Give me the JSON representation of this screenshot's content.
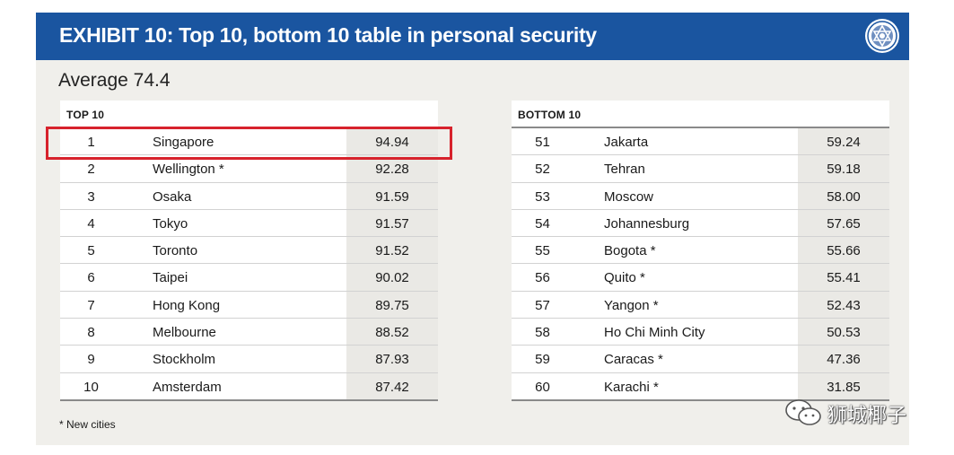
{
  "header": {
    "title": "EXHIBIT 10: Top 10, bottom 10 table in personal security"
  },
  "average": "Average 74.4",
  "top": {
    "heading": "TOP 10",
    "rows": [
      {
        "rank": "1",
        "city": "Singapore",
        "value": "94.94"
      },
      {
        "rank": "2",
        "city": "Wellington *",
        "value": "92.28"
      },
      {
        "rank": "3",
        "city": "Osaka",
        "value": "91.59"
      },
      {
        "rank": "4",
        "city": "Tokyo",
        "value": "91.57"
      },
      {
        "rank": "5",
        "city": "Toronto",
        "value": "91.52"
      },
      {
        "rank": "6",
        "city": "Taipei",
        "value": "90.02"
      },
      {
        "rank": "7",
        "city": "Hong Kong",
        "value": "89.75"
      },
      {
        "rank": "8",
        "city": "Melbourne",
        "value": "88.52"
      },
      {
        "rank": "9",
        "city": "Stockholm",
        "value": "87.93"
      },
      {
        "rank": "10",
        "city": "Amsterdam",
        "value": "87.42"
      }
    ]
  },
  "bottom": {
    "heading": "BOTTOM 10",
    "rows": [
      {
        "rank": "51",
        "city": "Jakarta",
        "value": "59.24"
      },
      {
        "rank": "52",
        "city": "Tehran",
        "value": "59.18"
      },
      {
        "rank": "53",
        "city": "Moscow",
        "value": "58.00"
      },
      {
        "rank": "54",
        "city": "Johannesburg",
        "value": "57.65"
      },
      {
        "rank": "55",
        "city": "Bogota *",
        "value": "55.66"
      },
      {
        "rank": "56",
        "city": "Quito *",
        "value": "55.41"
      },
      {
        "rank": "57",
        "city": "Yangon *",
        "value": "52.43"
      },
      {
        "rank": "58",
        "city": "Ho Chi Minh City",
        "value": "50.53"
      },
      {
        "rank": "59",
        "city": "Caracas *",
        "value": "47.36"
      },
      {
        "rank": "60",
        "city": "Karachi *",
        "value": "31.85"
      }
    ]
  },
  "footnote": "* New cities",
  "watermark": {
    "text": "狮城椰子",
    "icon": "wechat-icon"
  },
  "colors": {
    "header_bg": "#1a55a0",
    "panel_bg": "#f0efeb",
    "highlight": "#d7222c"
  }
}
